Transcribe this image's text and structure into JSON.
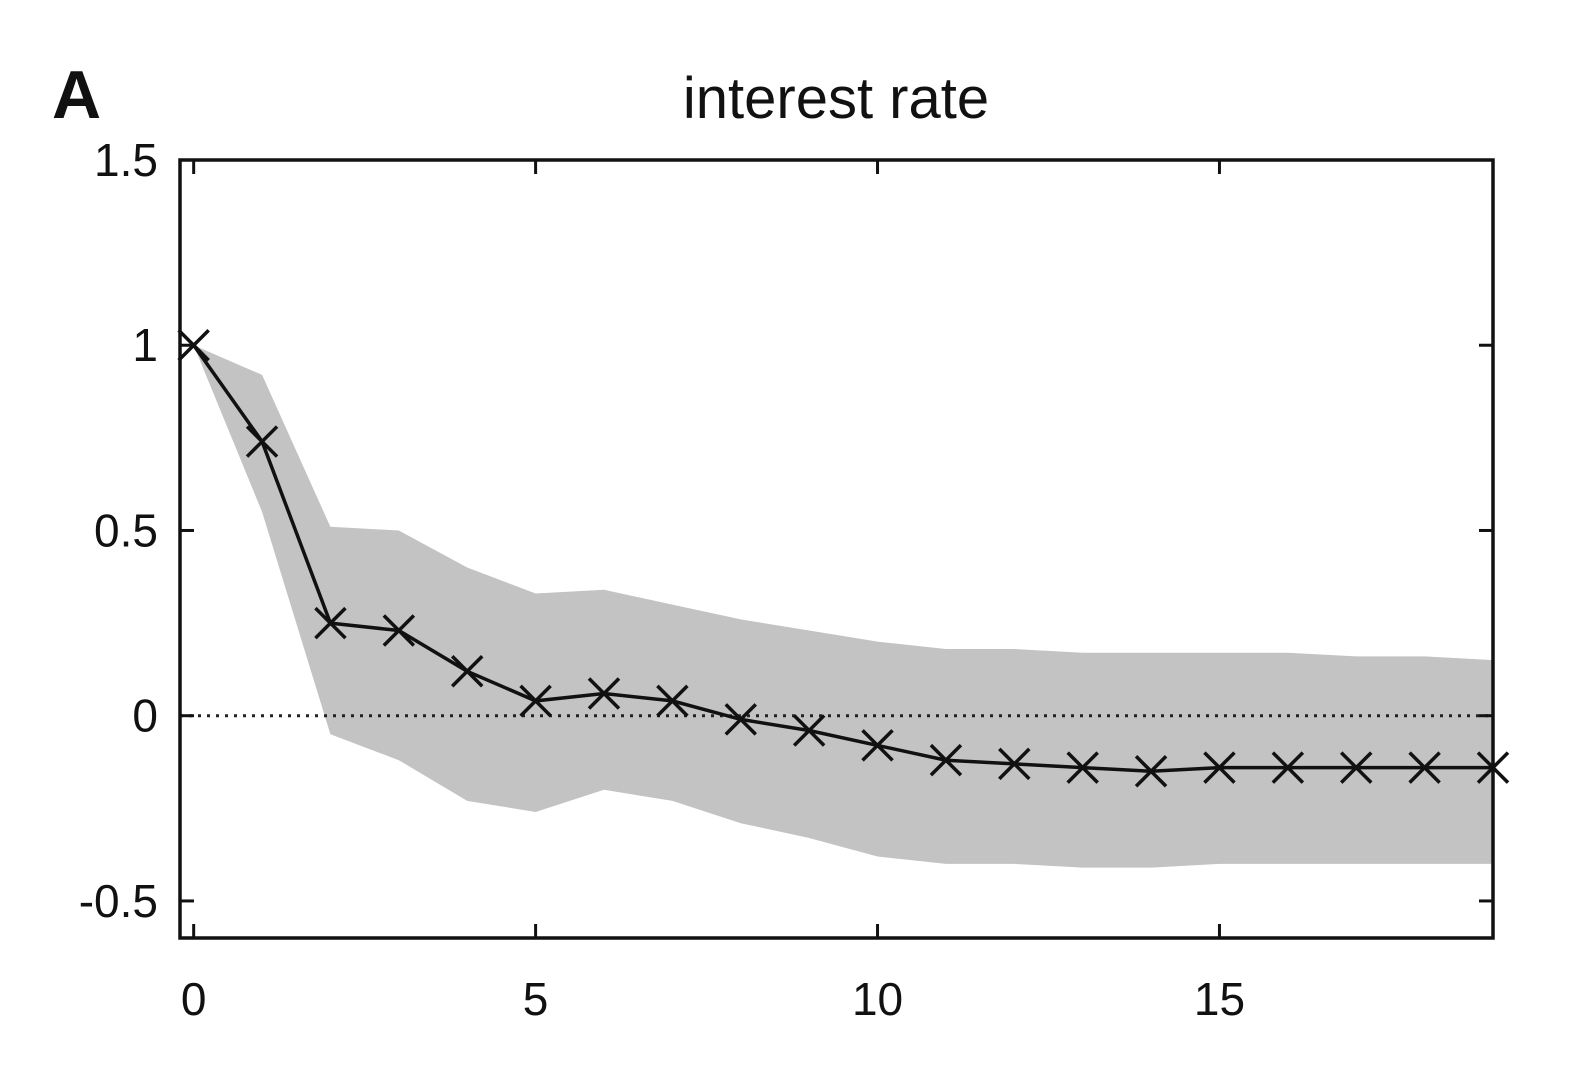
{
  "chart_data": {
    "type": "line",
    "panel_label": "A",
    "title": "interest rate",
    "xlabel": "",
    "ylabel": "",
    "xlim": [
      -0.2,
      19
    ],
    "ylim": [
      -0.6,
      1.5
    ],
    "xticks": [
      0,
      5,
      10,
      15
    ],
    "yticks": [
      -0.5,
      0,
      0.5,
      1,
      1.5
    ],
    "x": [
      0,
      1,
      2,
      3,
      4,
      5,
      6,
      7,
      8,
      9,
      10,
      11,
      12,
      13,
      14,
      15,
      16,
      17,
      18,
      19
    ],
    "series": [
      {
        "values": [
          1.0,
          0.74,
          0.25,
          0.23,
          0.12,
          0.04,
          0.06,
          0.04,
          -0.01,
          -0.04,
          -0.08,
          -0.12,
          -0.13,
          -0.14,
          -0.15,
          -0.14,
          -0.14,
          -0.14,
          -0.14,
          -0.14
        ],
        "marker": "x",
        "color": "#111111"
      }
    ],
    "band": {
      "upper": [
        1.0,
        0.92,
        0.51,
        0.5,
        0.4,
        0.33,
        0.34,
        0.3,
        0.26,
        0.23,
        0.2,
        0.18,
        0.18,
        0.17,
        0.17,
        0.17,
        0.17,
        0.16,
        0.16,
        0.15
      ],
      "lower": [
        1.0,
        0.55,
        -0.05,
        -0.12,
        -0.23,
        -0.26,
        -0.2,
        -0.23,
        -0.29,
        -0.33,
        -0.38,
        -0.4,
        -0.4,
        -0.41,
        -0.41,
        -0.4,
        -0.4,
        -0.4,
        -0.4,
        -0.4
      ],
      "color": "#c3c3c3"
    },
    "reference_line": {
      "y": 0,
      "style": "dotted",
      "color": "#222222"
    },
    "grid": false,
    "legend": "none"
  }
}
